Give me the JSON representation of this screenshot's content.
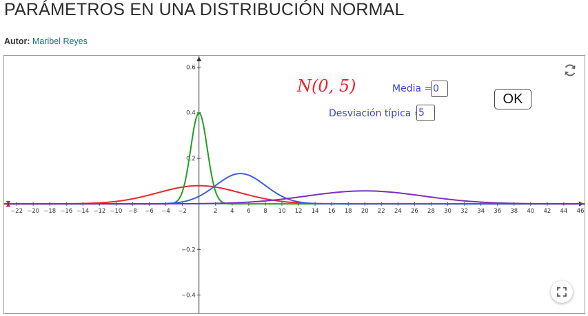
{
  "page": {
    "title": "PARÁMETROS EN UNA DISTRIBUCIÓN NORMAL",
    "author_label": "Autor:",
    "author_name": "Maribel Reyes"
  },
  "applet": {
    "formula_text": "N(0, 5)",
    "media_label": "Media =",
    "media_value": "0",
    "desviacion_label": "Desviación típica =",
    "desviacion_value": "5",
    "ok_label": "OK",
    "reset_icon": "refresh-icon",
    "fullscreen_icon": "fullscreen-icon"
  },
  "chart_data": {
    "type": "line",
    "xlim": [
      -23.5,
      46.5
    ],
    "ylim": [
      -0.48,
      0.65
    ],
    "x_ticks": [
      -22,
      -20,
      -18,
      -16,
      -14,
      -12,
      -10,
      -8,
      -6,
      -4,
      -2,
      2,
      4,
      6,
      8,
      10,
      12,
      14,
      16,
      18,
      20,
      22,
      24,
      26,
      28,
      30,
      32,
      34,
      36,
      38,
      40,
      42,
      44,
      46
    ],
    "y_ticks": [
      0.6,
      0.4,
      0.2,
      -0.2,
      -0.4
    ],
    "grid": false,
    "series": [
      {
        "color": "#e8262d",
        "mean": 0,
        "sd": 5
      },
      {
        "color": "#1fa01f",
        "mean": 0,
        "sd": 1
      },
      {
        "color": "#3a5fd9",
        "mean": 5,
        "sd": 3
      },
      {
        "color": "#7a2fbf",
        "mean": 20,
        "sd": 7
      }
    ],
    "point_color": "#e8262d"
  }
}
